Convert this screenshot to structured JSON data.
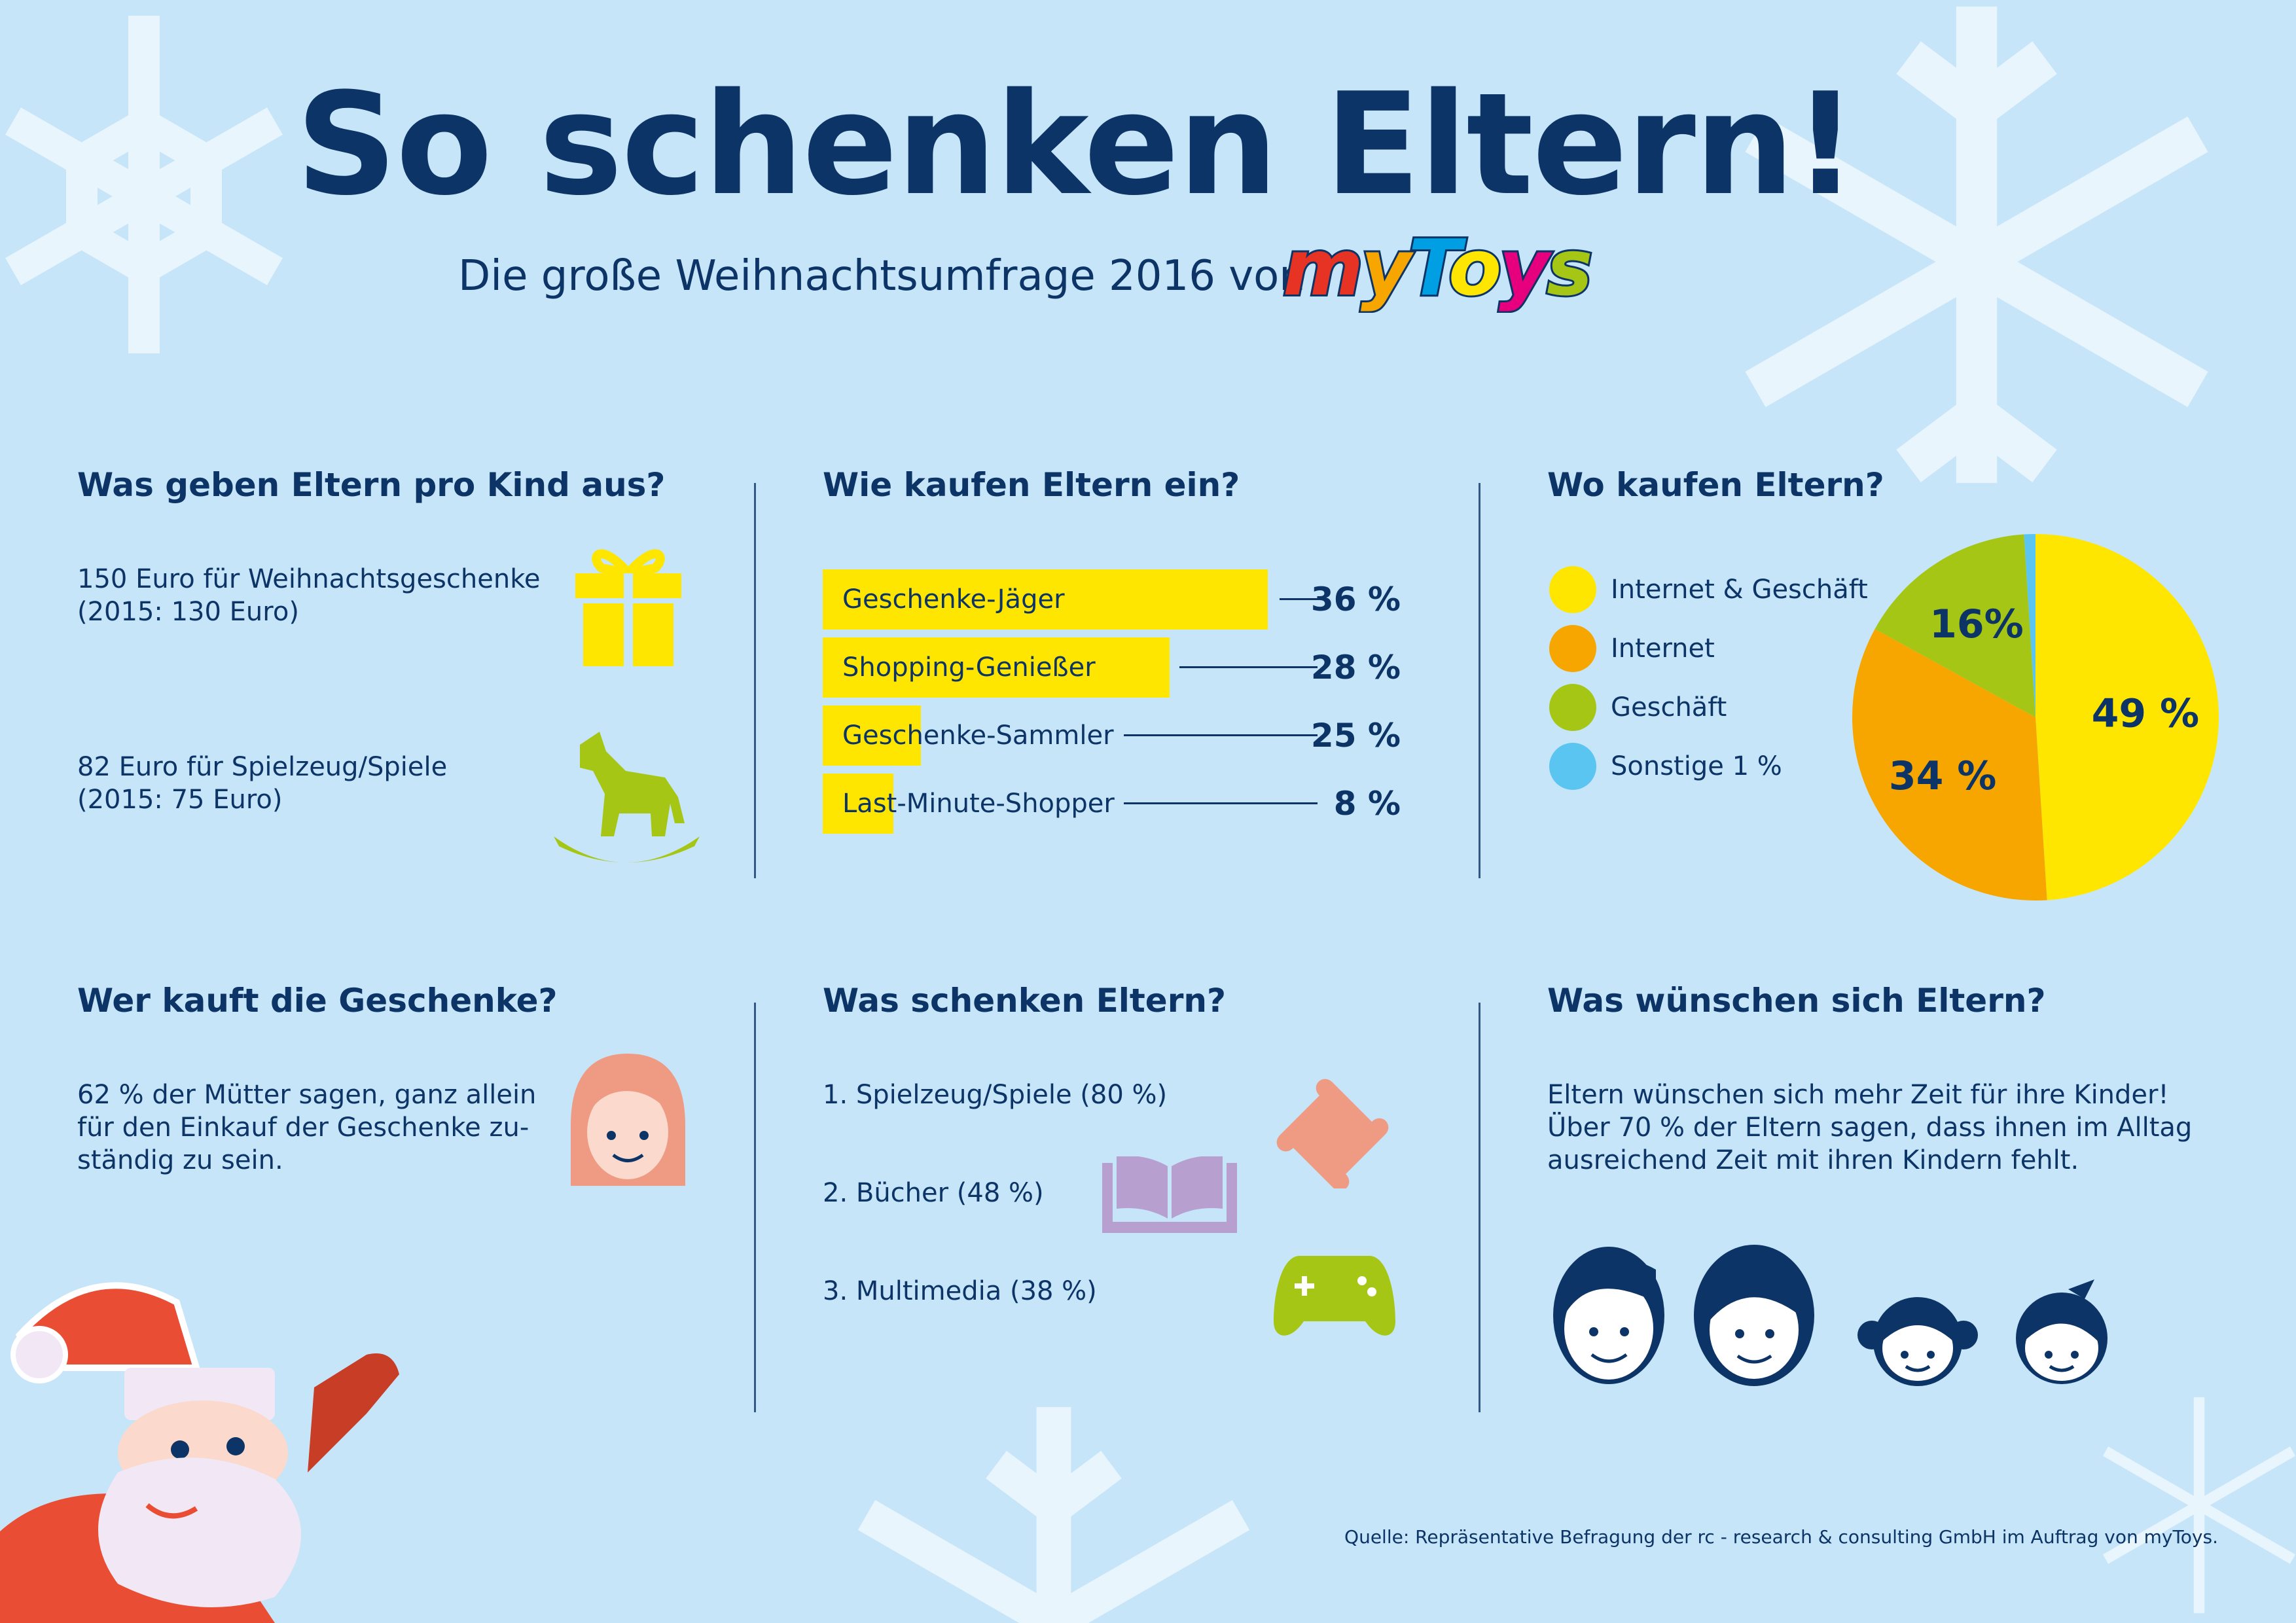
{
  "header": {
    "title": "So schenken Eltern!",
    "subtitle": "Die große Weihnachtsumfrage 2016 von",
    "logo_text": "myToys"
  },
  "colors": {
    "background": "#c6e5f8",
    "navy": "#0d3466",
    "yellow": "#ffe600",
    "orange": "#f7a600",
    "green": "#a5c614",
    "blue": "#5bc5f2",
    "salmon": "#ef9a82",
    "lilac": "#b7a0cf"
  },
  "spend": {
    "heading": "Was geben Eltern pro Kind aus?",
    "items": [
      {
        "line1": "150 Euro für Weihnachtsgeschenke",
        "line2": "(2015: 130 Euro)",
        "icon": "gift-icon"
      },
      {
        "line1": "82 Euro für Spielzeug/Spiele",
        "line2": "(2015: 75 Euro)",
        "icon": "rocking-horse-icon"
      }
    ]
  },
  "who": {
    "heading": "Wer kauft die Geschenke?",
    "lines": [
      "62 % der Mütter sagen, ganz allein",
      "für den Einkauf der Geschenke zu-",
      "ständig zu sein."
    ],
    "icon": "mother-face-icon"
  },
  "gifts": {
    "heading": "Was schenken Eltern?",
    "items": [
      {
        "label": "1. Spielzeug/Spiele (80 %)",
        "icon": "puzzle-icon"
      },
      {
        "label": "2. Bücher (48 %)",
        "icon": "book-icon"
      },
      {
        "label": "3. Multimedia (38 %)",
        "icon": "gamepad-icon"
      }
    ]
  },
  "wishes": {
    "heading": "Was wünschen sich Eltern?",
    "lines": [
      "Eltern wünschen sich mehr Zeit für ihre Kinder!",
      "Über 70 % der Eltern sagen, dass ihnen im Alltag",
      "ausreichend Zeit mit ihren Kindern fehlt."
    ],
    "icon": "family-faces-icon"
  },
  "source": "Quelle: Repräsentative Befragung der rc - research & consulting GmbH im Auftrag von myToys.",
  "chart_data": [
    {
      "type": "bar",
      "title": "Wie kaufen Eltern ein?",
      "orientation": "horizontal",
      "categories": [
        "Geschenke-Jäger",
        "Shopping-Genießer",
        "Geschenke-Sammler",
        "Last-Minute-Shopper"
      ],
      "values": [
        36,
        28,
        25,
        8
      ],
      "value_labels": [
        "36 %",
        "28 %",
        "25 %",
        "8 %"
      ],
      "unit": "%",
      "color": "#ffe600"
    },
    {
      "type": "pie",
      "title": "Wo kaufen Eltern?",
      "legend_placement": "left",
      "slices": [
        {
          "name": "Internet & Geschäft",
          "value": 49,
          "label": "49 %",
          "color": "#ffe600"
        },
        {
          "name": "Internet",
          "value": 34,
          "label": "34 %",
          "color": "#f7a600"
        },
        {
          "name": "Geschäft",
          "value": 16,
          "label": "16%",
          "color": "#a5c614"
        },
        {
          "name": "Sonstige 1 %",
          "value": 1,
          "label": "",
          "color": "#5bc5f2"
        }
      ]
    }
  ]
}
